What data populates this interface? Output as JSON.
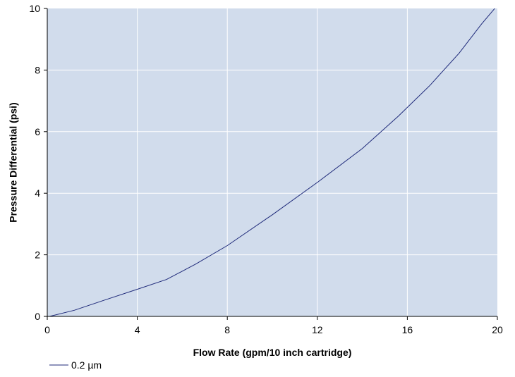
{
  "colors": {
    "plot_background": "#d1dcec",
    "grid": "#ffffff",
    "series_line": "#1f2a7a",
    "axis": "#000000"
  },
  "chart_data": {
    "type": "line",
    "title": "",
    "xlabel": "Flow Rate (gpm/10 inch cartridge)",
    "ylabel": "Pressure Differential (psi)",
    "xlim": [
      0,
      20
    ],
    "ylim": [
      0,
      10
    ],
    "x_ticks": [
      "0",
      "4",
      "8",
      "12",
      "16",
      "20"
    ],
    "y_ticks": [
      "0",
      "2",
      "4",
      "6",
      "8",
      "10"
    ],
    "grid": true,
    "legend_position": "bottom-left",
    "series": [
      {
        "name": "0.2 µm",
        "x": [
          0.1,
          1.2,
          2.5,
          4.0,
          5.3,
          6.6,
          8.0,
          10.0,
          12.0,
          14.0,
          15.6,
          17.0,
          18.3,
          19.3,
          20.0
        ],
        "y": [
          0.0,
          0.2,
          0.52,
          0.88,
          1.2,
          1.7,
          2.3,
          3.3,
          4.35,
          5.45,
          6.5,
          7.5,
          8.55,
          9.5,
          10.1
        ]
      }
    ]
  }
}
